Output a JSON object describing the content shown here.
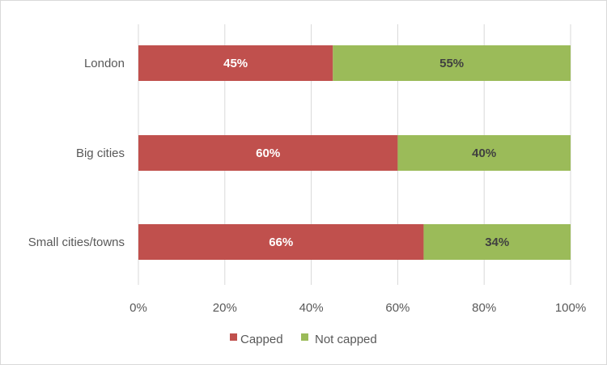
{
  "chart_data": {
    "type": "bar",
    "orientation": "horizontal",
    "stacked": true,
    "categories": [
      "London",
      "Big cities",
      "Small cities/towns"
    ],
    "series": [
      {
        "name": "Capped",
        "values": [
          45,
          60,
          66
        ],
        "labels": [
          "45%",
          "60%",
          "66%"
        ],
        "color": "#c0504d",
        "label_color": "#ffffff"
      },
      {
        "name": "Not capped",
        "values": [
          55,
          40,
          34
        ],
        "labels": [
          "55%",
          "40%",
          "34%"
        ],
        "color": "#9bbb59",
        "label_color": "#404040"
      }
    ],
    "x_ticks": [
      "0%",
      "20%",
      "40%",
      "60%",
      "80%",
      "100%"
    ],
    "xlim": [
      0,
      100
    ],
    "grid": true,
    "gridline_color": "#d9d9d9",
    "legend": "bottom"
  }
}
